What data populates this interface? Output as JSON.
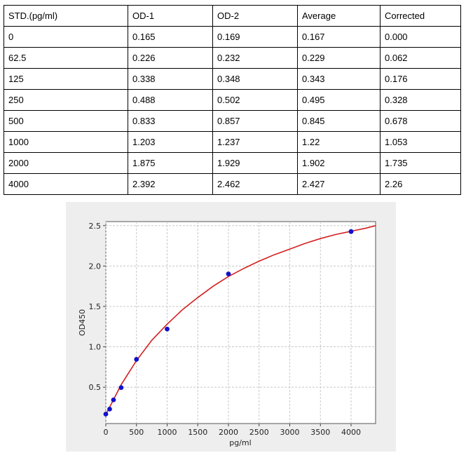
{
  "table": {
    "headers": [
      "STD.(pg/ml)",
      "OD-1",
      "OD-2",
      "Average",
      "Corrected"
    ],
    "rows": [
      [
        "0",
        "0.165",
        "0.169",
        "0.167",
        "0.000"
      ],
      [
        "62.5",
        "0.226",
        "0.232",
        "0.229",
        "0.062"
      ],
      [
        "125",
        "0.338",
        "0.348",
        "0.343",
        "0.176"
      ],
      [
        "250",
        "0.488",
        "0.502",
        "0.495",
        "0.328"
      ],
      [
        "500",
        "0.833",
        "0.857",
        "0.845",
        "0.678"
      ],
      [
        "1000",
        "1.203",
        "1.237",
        "1.22",
        "1.053"
      ],
      [
        "2000",
        "1.875",
        "1.929",
        "1.902",
        "1.735"
      ],
      [
        "4000",
        "2.392",
        "2.462",
        "2.427",
        "2.26"
      ]
    ]
  },
  "chart_data": {
    "type": "scatter",
    "title": "",
    "xlabel": "pg/ml",
    "ylabel": "OD450",
    "xlim": [
      0,
      4400
    ],
    "ylim": [
      0.05,
      2.55
    ],
    "xticks": [
      0,
      500,
      1000,
      1500,
      2000,
      2500,
      3000,
      3500,
      4000
    ],
    "yticks": [
      0.5,
      1.0,
      1.5,
      2.0,
      2.5
    ],
    "xtick_labels": [
      "0",
      "500",
      "1000",
      "1500",
      "2000",
      "2500",
      "3000",
      "3500",
      "4000"
    ],
    "ytick_labels": [
      "0.5",
      "1.0",
      "1.5",
      "2.0",
      "2.5"
    ],
    "grid": true,
    "series": [
      {
        "kind": "points",
        "color": "#1010cc",
        "x": [
          0,
          62.5,
          125,
          250,
          500,
          1000,
          2000,
          4000
        ],
        "y": [
          0.167,
          0.229,
          0.343,
          0.495,
          0.845,
          1.22,
          1.902,
          2.427
        ]
      },
      {
        "kind": "fit-curve",
        "color": "#d42020",
        "x": [
          0,
          250,
          500,
          750,
          1000,
          1250,
          1500,
          1750,
          2000,
          2250,
          2500,
          2750,
          3000,
          3250,
          3500,
          3750,
          4000,
          4250,
          4400
        ],
        "y": [
          0.16,
          0.53,
          0.83,
          1.08,
          1.28,
          1.46,
          1.61,
          1.75,
          1.87,
          1.97,
          2.06,
          2.14,
          2.21,
          2.28,
          2.34,
          2.39,
          2.43,
          2.47,
          2.5
        ]
      }
    ]
  }
}
